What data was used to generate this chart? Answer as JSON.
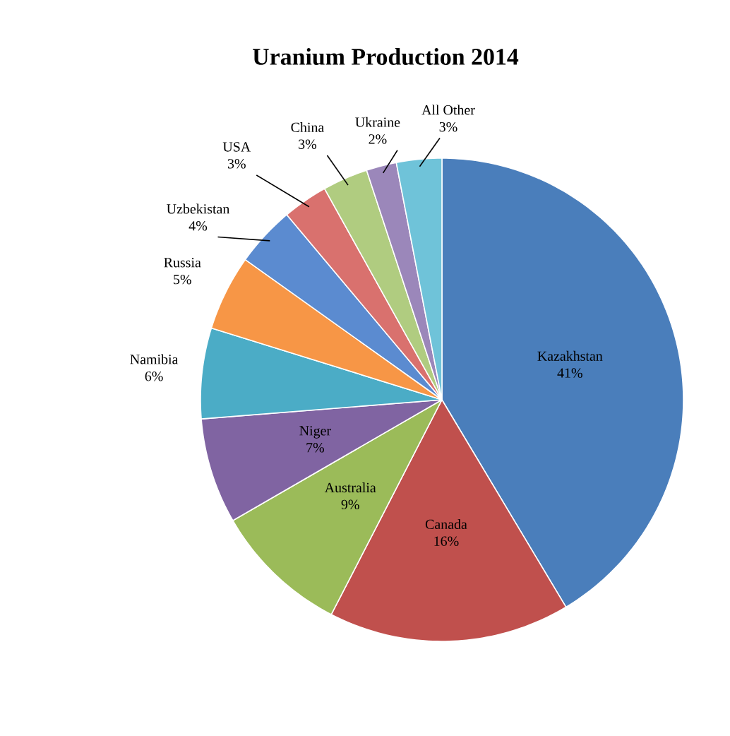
{
  "chart_data": {
    "type": "pie",
    "title": "Uranium Production 2014",
    "categories": [
      "Kazakhstan",
      "Canada",
      "Australia",
      "Niger",
      "Namibia",
      "Russia",
      "Uzbekistan",
      "USA",
      "China",
      "Ukraine",
      "All Other"
    ],
    "values": [
      41,
      16,
      9,
      7,
      6,
      5,
      4,
      3,
      3,
      2,
      3
    ],
    "colors": [
      "#4a7ebb",
      "#c0504d",
      "#9bbb59",
      "#8064a2",
      "#4bacc6",
      "#f79646",
      "#5b8bd0",
      "#d9716e",
      "#b0cc80",
      "#9b87ba",
      "#6fc3d9"
    ],
    "value_labels": [
      "41%",
      "16%",
      "9%",
      "7%",
      "6%",
      "5%",
      "4%",
      "3%",
      "3%",
      "2%",
      "3%"
    ]
  }
}
